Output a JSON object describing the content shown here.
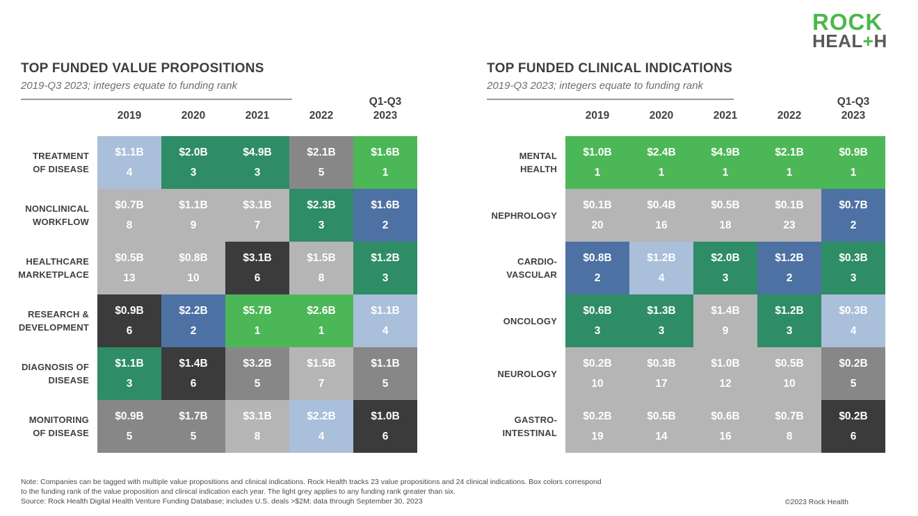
{
  "logo": {
    "rock": "ROCK",
    "health_pre": "HEAL",
    "plus": "+",
    "health_post": "H"
  },
  "colors": {
    "brand_green": "#4CB74A",
    "logo_grey": "#595959",
    "title_text": "#3D3D3D",
    "subtitle_text": "#6E6E6E",
    "cell_text": "#FFFFFF",
    "rank1": "#4CB756",
    "rank2": "#4E71A4",
    "rank3": "#2E8C66",
    "rank4": "#AABFD9",
    "rank5": "#878787",
    "rank6": "#3B3B3B",
    "rank_gt6": "#B5B5B5"
  },
  "panels": [
    {
      "key": "value-propositions",
      "title": "TOP FUNDED VALUE PROPOSITIONS",
      "subtitle": "2019-Q3 2023; integers equate to funding rank",
      "columns": [
        {
          "label": "2019"
        },
        {
          "label": "2020"
        },
        {
          "label": "2021"
        },
        {
          "label": "2022"
        },
        {
          "label": "2023",
          "super": "Q1-Q3"
        }
      ],
      "rows": [
        {
          "label_lines": [
            "TREATMENT",
            "OF DISEASE"
          ],
          "cells": [
            {
              "value": "$1.1B",
              "rank": 4
            },
            {
              "value": "$2.0B",
              "rank": 3
            },
            {
              "value": "$4.9B",
              "rank": 3
            },
            {
              "value": "$2.1B",
              "rank": 5
            },
            {
              "value": "$1.6B",
              "rank": 1
            }
          ]
        },
        {
          "label_lines": [
            "NONCLINICAL",
            "WORKFLOW"
          ],
          "cells": [
            {
              "value": "$0.7B",
              "rank": 8
            },
            {
              "value": "$1.1B",
              "rank": 9
            },
            {
              "value": "$3.1B",
              "rank": 7
            },
            {
              "value": "$2.3B",
              "rank": 3
            },
            {
              "value": "$1.6B",
              "rank": 2
            }
          ]
        },
        {
          "label_lines": [
            "HEALTHCARE",
            "MARKETPLACE"
          ],
          "cells": [
            {
              "value": "$0.5B",
              "rank": 13
            },
            {
              "value": "$0.8B",
              "rank": 10
            },
            {
              "value": "$3.1B",
              "rank": 6
            },
            {
              "value": "$1.5B",
              "rank": 8
            },
            {
              "value": "$1.2B",
              "rank": 3
            }
          ]
        },
        {
          "label_lines": [
            "RESEARCH &",
            "DEVELOPMENT"
          ],
          "cells": [
            {
              "value": "$0.9B",
              "rank": 6
            },
            {
              "value": "$2.2B",
              "rank": 2
            },
            {
              "value": "$5.7B",
              "rank": 1
            },
            {
              "value": "$2.6B",
              "rank": 1
            },
            {
              "value": "$1.1B",
              "rank": 4
            }
          ]
        },
        {
          "label_lines": [
            "DIAGNOSIS OF",
            "DISEASE"
          ],
          "cells": [
            {
              "value": "$1.1B",
              "rank": 3
            },
            {
              "value": "$1.4B",
              "rank": 6
            },
            {
              "value": "$3.2B",
              "rank": 5
            },
            {
              "value": "$1.5B",
              "rank": 7
            },
            {
              "value": "$1.1B",
              "rank": 5
            }
          ]
        },
        {
          "label_lines": [
            "MONITORING",
            "OF DISEASE"
          ],
          "cells": [
            {
              "value": "$0.9B",
              "rank": 5
            },
            {
              "value": "$1.7B",
              "rank": 5
            },
            {
              "value": "$3.1B",
              "rank": 8
            },
            {
              "value": "$2.2B",
              "rank": 4
            },
            {
              "value": "$1.0B",
              "rank": 6
            }
          ]
        }
      ]
    },
    {
      "key": "clinical-indications",
      "title": "TOP FUNDED CLINICAL INDICATIONS",
      "subtitle": "2019-Q3 2023; integers equate to funding rank",
      "columns": [
        {
          "label": "2019"
        },
        {
          "label": "2020"
        },
        {
          "label": "2021"
        },
        {
          "label": "2022"
        },
        {
          "label": "2023",
          "super": "Q1-Q3"
        }
      ],
      "rows": [
        {
          "label_lines": [
            "MENTAL",
            "HEALTH"
          ],
          "cells": [
            {
              "value": "$1.0B",
              "rank": 1
            },
            {
              "value": "$2.4B",
              "rank": 1
            },
            {
              "value": "$4.9B",
              "rank": 1
            },
            {
              "value": "$2.1B",
              "rank": 1
            },
            {
              "value": "$0.9B",
              "rank": 1
            }
          ]
        },
        {
          "label_lines": [
            "NEPHROLOGY"
          ],
          "cells": [
            {
              "value": "$0.1B",
              "rank": 20
            },
            {
              "value": "$0.4B",
              "rank": 16
            },
            {
              "value": "$0.5B",
              "rank": 18
            },
            {
              "value": "$0.1B",
              "rank": 23
            },
            {
              "value": "$0.7B",
              "rank": 2
            }
          ]
        },
        {
          "label_lines": [
            "CARDIO-",
            "VASCULAR"
          ],
          "cells": [
            {
              "value": "$0.8B",
              "rank": 2
            },
            {
              "value": "$1.2B",
              "rank": 4
            },
            {
              "value": "$2.0B",
              "rank": 3
            },
            {
              "value": "$1.2B",
              "rank": 2
            },
            {
              "value": "$0.3B",
              "rank": 3
            }
          ]
        },
        {
          "label_lines": [
            "ONCOLOGY"
          ],
          "cells": [
            {
              "value": "$0.6B",
              "rank": 3
            },
            {
              "value": "$1.3B",
              "rank": 3
            },
            {
              "value": "$1.4B",
              "rank": 9
            },
            {
              "value": "$1.2B",
              "rank": 3
            },
            {
              "value": "$0.3B",
              "rank": 4
            }
          ]
        },
        {
          "label_lines": [
            "NEUROLOGY"
          ],
          "cells": [
            {
              "value": "$0.2B",
              "rank": 10
            },
            {
              "value": "$0.3B",
              "rank": 17
            },
            {
              "value": "$1.0B",
              "rank": 12
            },
            {
              "value": "$0.5B",
              "rank": 10
            },
            {
              "value": "$0.2B",
              "rank": 5
            }
          ]
        },
        {
          "label_lines": [
            "GASTRO-",
            "INTESTINAL"
          ],
          "cells": [
            {
              "value": "$0.2B",
              "rank": 19
            },
            {
              "value": "$0.5B",
              "rank": 14
            },
            {
              "value": "$0.6B",
              "rank": 16
            },
            {
              "value": "$0.7B",
              "rank": 8
            },
            {
              "value": "$0.2B",
              "rank": 6
            }
          ]
        }
      ]
    }
  ],
  "footer": {
    "note_lines": [
      "Note: Companies can be tagged with multiple value propositions and clinical indications. Rock Health tracks 23 value propositions and 24 clinical indications. Box colors correspond",
      "to the funding rank of the value proposition and clinical indication each year. The light grey applies to any funding rank greater than six.",
      "Source: Rock Health Digital Health Venture Funding Database; includes U.S. deals >$2M; data through September 30, 2023"
    ],
    "copyright": "©2023 Rock Health"
  },
  "chart_data": [
    {
      "type": "heatmap",
      "title": "TOP FUNDED VALUE PROPOSITIONS",
      "subtitle": "2019-Q3 2023; integers equate to funding rank",
      "columns": [
        "2019",
        "2020",
        "2021",
        "2022",
        "Q1-Q3 2023"
      ],
      "rows": [
        "TREATMENT OF DISEASE",
        "NONCLINICAL WORKFLOW",
        "HEALTHCARE MARKETPLACE",
        "RESEARCH & DEVELOPMENT",
        "DIAGNOSIS OF DISEASE",
        "MONITORING OF DISEASE"
      ],
      "funding_billions_usd": [
        [
          1.1,
          2.0,
          4.9,
          2.1,
          1.6
        ],
        [
          0.7,
          1.1,
          3.1,
          2.3,
          1.6
        ],
        [
          0.5,
          0.8,
          3.1,
          1.5,
          1.2
        ],
        [
          0.9,
          2.2,
          5.7,
          2.6,
          1.1
        ],
        [
          1.1,
          1.4,
          3.2,
          1.5,
          1.1
        ],
        [
          0.9,
          1.7,
          3.1,
          2.2,
          1.0
        ]
      ],
      "funding_ranks": [
        [
          4,
          3,
          3,
          5,
          1
        ],
        [
          8,
          9,
          7,
          3,
          2
        ],
        [
          13,
          10,
          6,
          8,
          3
        ],
        [
          6,
          2,
          1,
          1,
          4
        ],
        [
          3,
          6,
          5,
          7,
          5
        ],
        [
          5,
          5,
          8,
          4,
          6
        ]
      ],
      "color_coding": "box color corresponds to funding rank: 1 light green, 2 blue, 3 dark green, 4 light blue, 5 medium grey, 6 charcoal, >6 light grey"
    },
    {
      "type": "heatmap",
      "title": "TOP FUNDED CLINICAL INDICATIONS",
      "subtitle": "2019-Q3 2023; integers equate to funding rank",
      "columns": [
        "2019",
        "2020",
        "2021",
        "2022",
        "Q1-Q3 2023"
      ],
      "rows": [
        "MENTAL HEALTH",
        "NEPHROLOGY",
        "CARDIO-VASCULAR",
        "ONCOLOGY",
        "NEUROLOGY",
        "GASTRO-INTESTINAL"
      ],
      "funding_billions_usd": [
        [
          1.0,
          2.4,
          4.9,
          2.1,
          0.9
        ],
        [
          0.1,
          0.4,
          0.5,
          0.1,
          0.7
        ],
        [
          0.8,
          1.2,
          2.0,
          1.2,
          0.3
        ],
        [
          0.6,
          1.3,
          1.4,
          1.2,
          0.3
        ],
        [
          0.2,
          0.3,
          1.0,
          0.5,
          0.2
        ],
        [
          0.2,
          0.5,
          0.6,
          0.7,
          0.2
        ]
      ],
      "funding_ranks": [
        [
          1,
          1,
          1,
          1,
          1
        ],
        [
          20,
          16,
          18,
          23,
          2
        ],
        [
          2,
          4,
          3,
          2,
          3
        ],
        [
          3,
          3,
          9,
          3,
          4
        ],
        [
          10,
          17,
          12,
          10,
          5
        ],
        [
          19,
          14,
          16,
          8,
          6
        ]
      ],
      "color_coding": "box color corresponds to funding rank: 1 light green, 2 blue, 3 dark green, 4 light blue, 5 medium grey, 6 charcoal, >6 light grey"
    }
  ]
}
